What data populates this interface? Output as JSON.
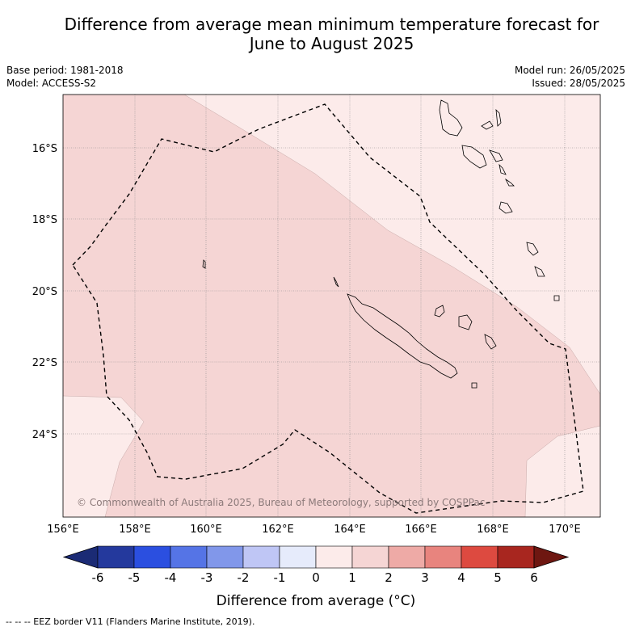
{
  "title_line1": "Difference from average mean minimum temperature forecast for",
  "title_line2": "June to August 2025",
  "base_period": "Base period: 1981-2018",
  "model": "Model: ACCESS-S2",
  "model_run": "Model run: 26/05/2025",
  "issued": "Issued: 28/05/2025",
  "copyright": "© Commonwealth of Australia 2025, Bureau of Meteorology, supported by COSPPac",
  "footer": "-- -- -- EEZ border V11 (Flanders Marine Institute, 2019).",
  "colorbar": {
    "label": "Difference from average (°C)",
    "ticks": [
      "-6",
      "-5",
      "-4",
      "-3",
      "-2",
      "-1",
      "0",
      "1",
      "2",
      "3",
      "4",
      "5",
      "6"
    ],
    "colors": [
      "#24399d",
      "#2b4fe0",
      "#5574e6",
      "#8197ea",
      "#bfc6f5",
      "#e6ebfb",
      "#fcebea",
      "#f5d5d4",
      "#eeaaa6",
      "#e8847e",
      "#dd4a40",
      "#a8261f"
    ],
    "under_color": "#1b2b75",
    "over_color": "#6e1711"
  },
  "map": {
    "lon_labels": [
      "156°E",
      "158°E",
      "160°E",
      "162°E",
      "164°E",
      "166°E",
      "168°E",
      "170°E"
    ],
    "lat_labels": [
      "16°S",
      "18°S",
      "20°S",
      "22°S",
      "24°S"
    ],
    "fill_colors": {
      "anomaly_0_1": "#fcebea",
      "anomaly_1_2": "#f5d5d4"
    }
  }
}
